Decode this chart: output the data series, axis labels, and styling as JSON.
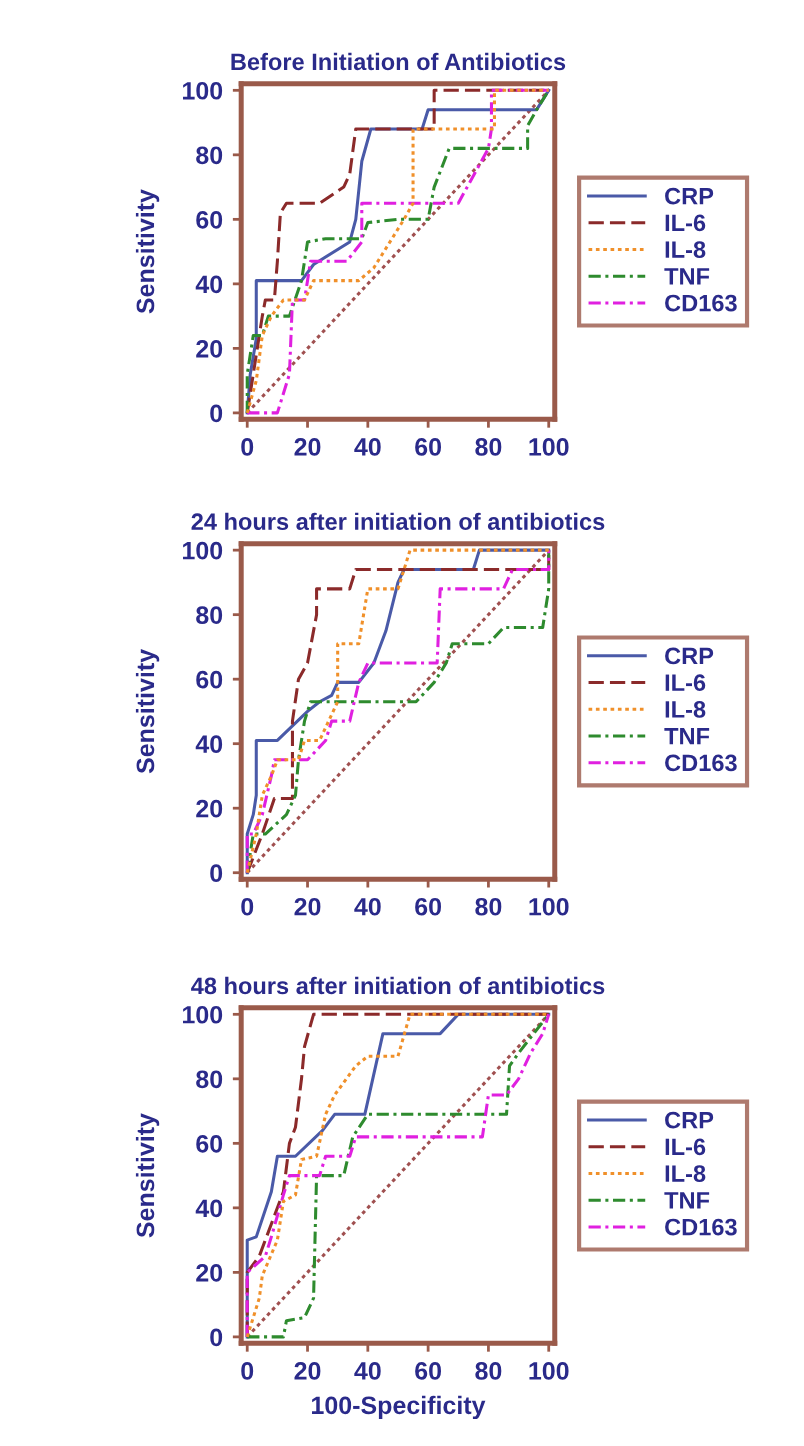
{
  "chart_data": [
    {
      "type": "line",
      "title": "Before Initiation of Antibiotics",
      "ylabel": "Sensitivity",
      "xlim": [
        -2,
        102
      ],
      "ylim": [
        -2,
        102
      ],
      "xticks": [
        0,
        20,
        40,
        60,
        80,
        100
      ],
      "yticks": [
        0,
        20,
        40,
        60,
        80,
        100
      ],
      "grid": false,
      "legend": "right",
      "marker": "none",
      "series": [
        {
          "name": "CRP",
          "color": "#4a5aa8",
          "line_style": "solid",
          "x": [
            0,
            1,
            3,
            3,
            18,
            22,
            34,
            36,
            38,
            41,
            58,
            60,
            96,
            100
          ],
          "values": [
            0,
            12,
            23,
            41,
            41,
            46,
            53,
            60,
            78,
            88,
            88,
            94,
            94,
            100
          ]
        },
        {
          "name": "IL-6",
          "color": "#8b2a2a",
          "line_style": "dashed",
          "x": [
            0,
            3,
            5,
            6,
            9,
            10,
            11,
            13,
            24,
            32,
            34,
            36,
            62,
            62,
            100
          ],
          "values": [
            0,
            18,
            30,
            35,
            35,
            47,
            62,
            65,
            65,
            70,
            74,
            88,
            88,
            100,
            100
          ]
        },
        {
          "name": "IL-8",
          "color": "#f0902a",
          "line_style": "dotted",
          "x": [
            0,
            3,
            5,
            8,
            12,
            19,
            22,
            37,
            42,
            52,
            55,
            55,
            82,
            82,
            100
          ],
          "values": [
            0,
            10,
            24,
            30,
            35,
            35,
            41,
            41,
            45,
            60,
            65,
            88,
            88,
            100,
            100
          ]
        },
        {
          "name": "TNF",
          "color": "#2e8b2e",
          "line_style": "dashdot",
          "x": [
            0,
            0,
            2,
            5,
            7,
            14,
            18,
            20,
            26,
            38,
            40,
            50,
            60,
            62,
            67,
            84,
            93,
            93,
            96,
            100
          ],
          "values": [
            0,
            12,
            24,
            24,
            30,
            30,
            41,
            53,
            54,
            54,
            59,
            60,
            60,
            70,
            82,
            82,
            82,
            89,
            94,
            100
          ]
        },
        {
          "name": "CD163",
          "color": "#e020e0",
          "line_style": "dashdot",
          "x": [
            0,
            10,
            14,
            15,
            19,
            21,
            33,
            38,
            38,
            70,
            80,
            81,
            81,
            100
          ],
          "values": [
            0,
            0,
            12,
            35,
            35,
            47,
            47,
            53,
            65,
            65,
            82,
            88,
            100,
            100
          ]
        },
        {
          "color": "#a05050",
          "line_style": "dotted",
          "x": [
            0,
            100
          ],
          "values": [
            0,
            100
          ]
        }
      ]
    },
    {
      "type": "line",
      "title": "24 hours after initiation of antibiotics",
      "ylabel": "Sensitivity",
      "xlim": [
        -2,
        102
      ],
      "ylim": [
        -2,
        102
      ],
      "xticks": [
        0,
        20,
        40,
        60,
        80,
        100
      ],
      "yticks": [
        0,
        20,
        40,
        60,
        80,
        100
      ],
      "grid": false,
      "legend": "right",
      "marker": "none",
      "series": [
        {
          "name": "CRP",
          "color": "#4a5aa8",
          "line_style": "solid",
          "x": [
            0,
            0,
            2,
            3,
            3,
            10,
            20,
            24,
            28,
            30,
            37,
            42,
            46,
            50,
            52,
            75,
            77,
            100
          ],
          "values": [
            0,
            12,
            18,
            24,
            41,
            41,
            50,
            53,
            55,
            59,
            59,
            65,
            75,
            90,
            94,
            94,
            100,
            100
          ]
        },
        {
          "name": "IL-6",
          "color": "#8b2a2a",
          "line_style": "dashed",
          "x": [
            0,
            5,
            9,
            15,
            15,
            17,
            20,
            23,
            23,
            34,
            36,
            100,
            100
          ],
          "values": [
            0,
            12,
            23,
            23,
            47,
            60,
            65,
            80,
            88,
            88,
            94,
            94,
            100
          ]
        },
        {
          "name": "IL-8",
          "color": "#f0902a",
          "line_style": "dotted",
          "x": [
            0,
            3,
            5,
            8,
            10,
            17,
            19,
            24,
            27,
            30,
            30,
            37,
            40,
            50,
            54,
            100
          ],
          "values": [
            0,
            12,
            24,
            30,
            35,
            35,
            41,
            41,
            47,
            53,
            71,
            71,
            88,
            88,
            100,
            100
          ]
        },
        {
          "name": "TNF",
          "color": "#2e8b2e",
          "line_style": "dashdot",
          "x": [
            0,
            2,
            6,
            13,
            16,
            17,
            19,
            21,
            56,
            62,
            66,
            68,
            80,
            85,
            98,
            100,
            100
          ],
          "values": [
            0,
            12,
            12,
            18,
            24,
            35,
            47,
            53,
            53,
            59,
            65,
            71,
            71,
            76,
            76,
            88,
            100
          ]
        },
        {
          "name": "CD163",
          "color": "#e020e0",
          "line_style": "dashdot",
          "x": [
            0,
            0,
            2,
            5,
            8,
            9,
            20,
            26,
            28,
            34,
            37,
            40,
            63,
            64,
            85,
            88,
            100,
            100
          ],
          "values": [
            0,
            12,
            12,
            18,
            30,
            35,
            35,
            41,
            47,
            47,
            59,
            65,
            65,
            88,
            88,
            94,
            94,
            100
          ]
        },
        {
          "color": "#a05050",
          "line_style": "dotted",
          "x": [
            0,
            100
          ],
          "values": [
            0,
            100
          ]
        }
      ]
    },
    {
      "type": "line",
      "title": "48 hours after initiation of antibiotics",
      "xlabel": "100-Specificity",
      "ylabel": "Sensitivity",
      "xlim": [
        -2,
        102
      ],
      "ylim": [
        -2,
        102
      ],
      "xticks": [
        0,
        20,
        40,
        60,
        80,
        100
      ],
      "yticks": [
        0,
        20,
        40,
        60,
        80,
        100
      ],
      "grid": false,
      "legend": "right",
      "marker": "none",
      "series": [
        {
          "name": "CRP",
          "color": "#4a5aa8",
          "line_style": "solid",
          "x": [
            0,
            0,
            3,
            8,
            10,
            16,
            25,
            29,
            39,
            45,
            64,
            70,
            100
          ],
          "values": [
            0,
            30,
            31,
            45,
            56,
            56,
            64,
            69,
            69,
            94,
            94,
            100,
            100
          ]
        },
        {
          "name": "IL-6",
          "color": "#8b2a2a",
          "line_style": "dashed",
          "x": [
            0,
            0,
            4,
            8,
            12,
            14,
            16,
            18,
            19,
            22,
            100
          ],
          "values": [
            0,
            20,
            25,
            35,
            45,
            60,
            65,
            80,
            90,
            100,
            100
          ]
        },
        {
          "name": "IL-8",
          "color": "#f0902a",
          "line_style": "dotted",
          "x": [
            0,
            2,
            4,
            5,
            10,
            12,
            16,
            18,
            23,
            26,
            29,
            36,
            40,
            50,
            54,
            100
          ],
          "values": [
            0,
            6,
            12,
            19,
            30,
            42,
            44,
            55,
            56,
            69,
            75,
            84,
            87,
            87,
            100,
            100
          ]
        },
        {
          "name": "TNF",
          "color": "#2e8b2e",
          "line_style": "dashdot",
          "x": [
            0,
            12,
            13,
            19,
            22,
            23,
            32,
            35,
            40,
            86,
            87,
            90,
            100
          ],
          "values": [
            0,
            0,
            5,
            6,
            12,
            50,
            50,
            62,
            69,
            69,
            84,
            88,
            100
          ]
        },
        {
          "name": "CD163",
          "color": "#e020e0",
          "line_style": "dashdot",
          "x": [
            0,
            0,
            6,
            8,
            12,
            14,
            24,
            26,
            34,
            36,
            78,
            80,
            86,
            90,
            94,
            98,
            100
          ],
          "values": [
            0,
            20,
            25,
            31,
            44,
            50,
            50,
            56,
            56,
            62,
            62,
            75,
            75,
            80,
            88,
            94,
            100
          ]
        },
        {
          "color": "#a05050",
          "line_style": "dotted",
          "x": [
            0,
            100
          ],
          "values": [
            0,
            100
          ]
        }
      ]
    }
  ]
}
